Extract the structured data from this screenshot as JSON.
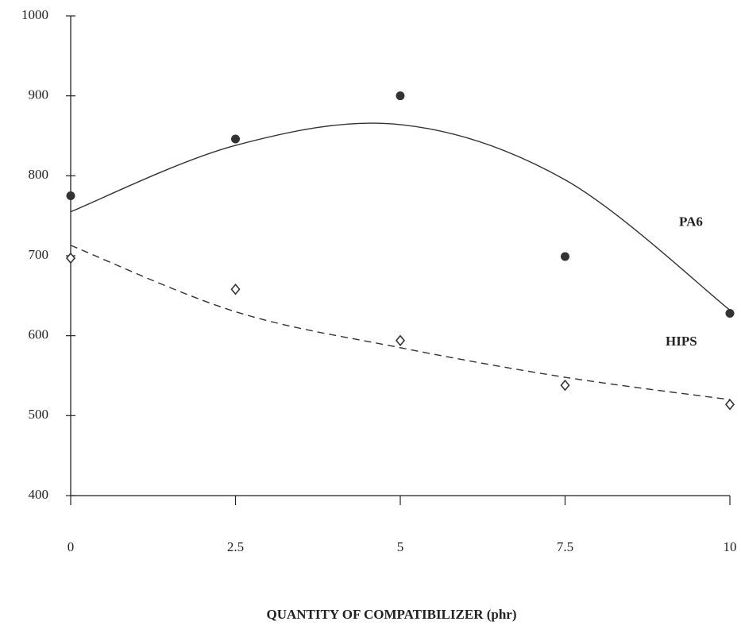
{
  "chart_data": {
    "type": "scatter",
    "x_label": "QUANTITY OF COMPATIBILIZER (phr)",
    "x": [
      0,
      2.5,
      5,
      7.5,
      10
    ],
    "xlim": [
      0,
      10
    ],
    "xticks": [
      0,
      2.5,
      5,
      7.5,
      10
    ],
    "ylim": [
      400,
      1000
    ],
    "yticks": [
      400,
      500,
      600,
      700,
      800,
      900,
      1000
    ],
    "grid": false,
    "series": [
      {
        "name": "PA6",
        "color": "#333333",
        "marker": "circle",
        "line_style": "solid",
        "values": [
          775,
          846,
          900,
          699,
          628
        ],
        "trend": [
          755,
          838,
          864,
          795,
          632
        ]
      },
      {
        "name": "HIPS",
        "color": "#333333",
        "marker": "diamond",
        "line_style": "dashed",
        "values": [
          697,
          658,
          594,
          538,
          514
        ],
        "trend": [
          713,
          630,
          585,
          548,
          520
        ]
      }
    ]
  }
}
